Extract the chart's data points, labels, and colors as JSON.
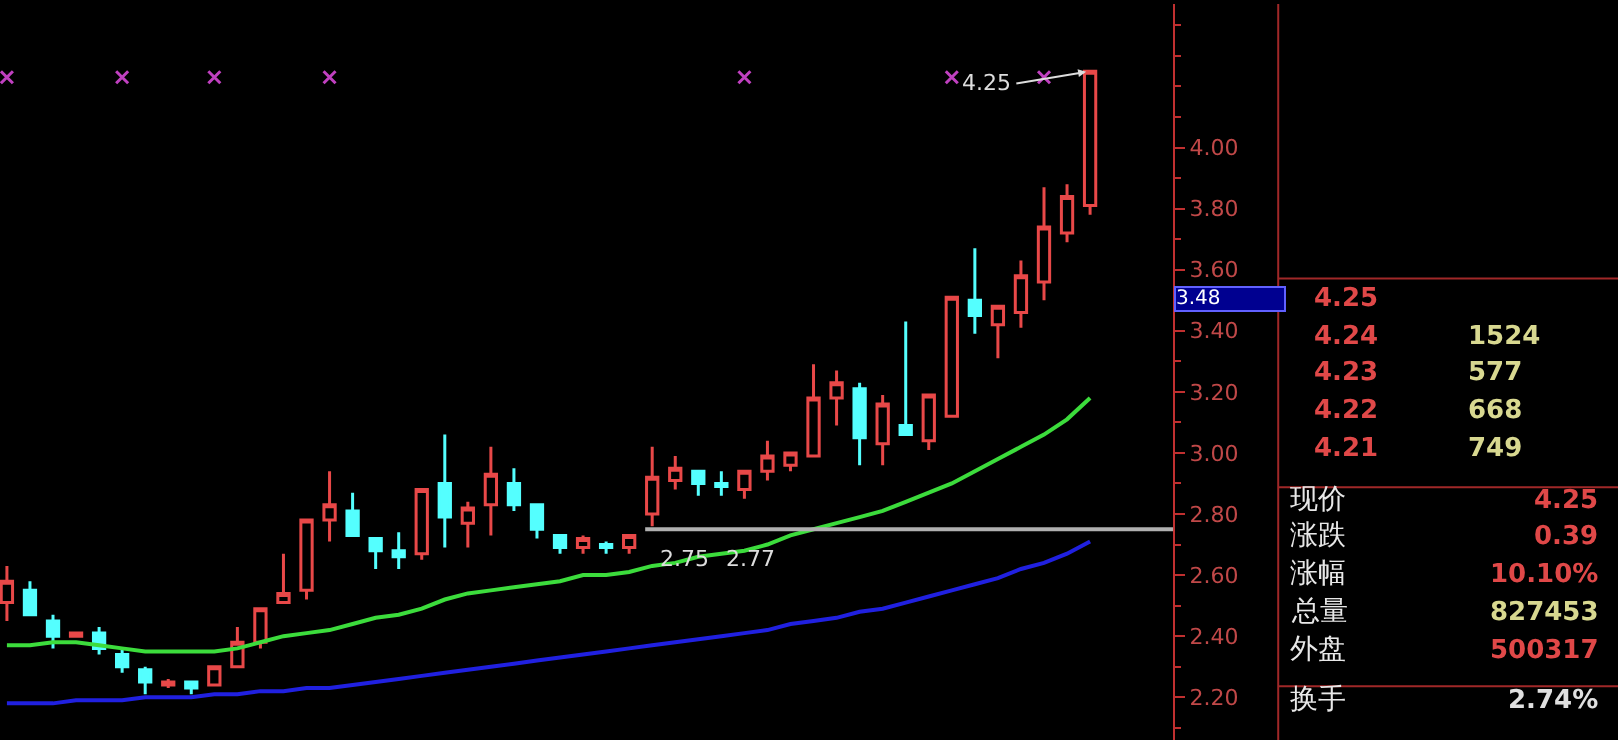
{
  "chart_data": {
    "type": "candlestick",
    "categories": [
      null,
      null,
      null,
      null,
      null,
      null,
      null,
      null,
      null,
      null,
      null,
      null,
      null,
      null,
      null,
      null,
      null,
      null,
      null,
      null,
      null,
      null,
      null,
      null,
      null,
      null,
      null,
      null,
      null,
      null,
      null,
      null,
      null,
      null,
      null,
      null,
      null,
      null,
      null,
      null,
      null,
      null,
      null,
      null,
      null,
      null,
      null,
      null
    ],
    "ohlc": [
      [
        2.51,
        2.63,
        2.45,
        2.58
      ],
      [
        2.55,
        2.58,
        2.47,
        2.47
      ],
      [
        2.45,
        2.47,
        2.36,
        2.4
      ],
      [
        2.4,
        2.41,
        2.4,
        2.41
      ],
      [
        2.41,
        2.43,
        2.34,
        2.36
      ],
      [
        2.34,
        2.36,
        2.28,
        2.3
      ],
      [
        2.29,
        2.3,
        2.21,
        2.25
      ],
      [
        2.24,
        2.26,
        2.23,
        2.25
      ],
      [
        2.25,
        2.25,
        2.21,
        2.23
      ],
      [
        2.24,
        2.3,
        2.24,
        2.3
      ],
      [
        2.3,
        2.43,
        2.3,
        2.38
      ],
      [
        2.38,
        2.49,
        2.36,
        2.49
      ],
      [
        2.51,
        2.67,
        2.51,
        2.54
      ],
      [
        2.55,
        2.78,
        2.52,
        2.78
      ],
      [
        2.78,
        2.94,
        2.71,
        2.83
      ],
      [
        2.81,
        2.87,
        2.73,
        2.73
      ],
      [
        2.72,
        2.72,
        2.62,
        2.68
      ],
      [
        2.68,
        2.74,
        2.62,
        2.66
      ],
      [
        2.67,
        2.88,
        2.65,
        2.88
      ],
      [
        2.9,
        3.06,
        2.69,
        2.79
      ],
      [
        2.77,
        2.84,
        2.69,
        2.82
      ],
      [
        2.83,
        3.02,
        2.73,
        2.93
      ],
      [
        2.9,
        2.95,
        2.81,
        2.83
      ],
      [
        2.83,
        2.83,
        2.72,
        2.75
      ],
      [
        2.73,
        2.73,
        2.67,
        2.69
      ],
      [
        2.69,
        2.73,
        2.67,
        2.72
      ],
      [
        2.7,
        2.71,
        2.67,
        2.69
      ],
      [
        2.69,
        2.73,
        2.67,
        2.73
      ],
      [
        2.8,
        3.02,
        2.76,
        2.92
      ],
      [
        2.91,
        2.99,
        2.88,
        2.95
      ],
      [
        2.94,
        2.94,
        2.86,
        2.9
      ],
      [
        2.9,
        2.94,
        2.86,
        2.89
      ],
      [
        2.88,
        2.94,
        2.85,
        2.94
      ],
      [
        2.94,
        3.04,
        2.91,
        2.99
      ],
      [
        2.96,
        3.0,
        2.94,
        3.0
      ],
      [
        2.99,
        3.29,
        2.99,
        3.18
      ],
      [
        3.18,
        3.27,
        3.09,
        3.23
      ],
      [
        3.21,
        3.23,
        2.96,
        3.05
      ],
      [
        3.03,
        3.19,
        2.96,
        3.16
      ],
      [
        3.09,
        3.43,
        3.06,
        3.06
      ],
      [
        3.04,
        3.19,
        3.01,
        3.19
      ],
      [
        3.12,
        3.51,
        3.12,
        3.51
      ],
      [
        3.5,
        3.67,
        3.39,
        3.45
      ],
      [
        3.42,
        3.48,
        3.31,
        3.48
      ],
      [
        3.46,
        3.63,
        3.41,
        3.58
      ],
      [
        3.56,
        3.87,
        3.5,
        3.74
      ],
      [
        3.72,
        3.88,
        3.69,
        3.84
      ],
      [
        3.81,
        4.25,
        3.78,
        4.25
      ]
    ],
    "series": [
      {
        "type": "line",
        "color": "#3cdc3c",
        "values": [
          2.37,
          2.37,
          2.38,
          2.38,
          2.37,
          2.36,
          2.35,
          2.35,
          2.35,
          2.35,
          2.36,
          2.38,
          2.4,
          2.41,
          2.42,
          2.44,
          2.46,
          2.47,
          2.49,
          2.52,
          2.54,
          2.55,
          2.56,
          2.57,
          2.58,
          2.6,
          2.6,
          2.61,
          2.63,
          2.64,
          2.66,
          2.67,
          2.68,
          2.7,
          2.73,
          2.75,
          2.77,
          2.79,
          2.81,
          2.84,
          2.87,
          2.9,
          2.94,
          2.98,
          3.02,
          3.06,
          3.11,
          3.18
        ]
      },
      {
        "type": "line",
        "color": "#2020e0",
        "values": [
          2.18,
          2.18,
          2.18,
          2.19,
          2.19,
          2.19,
          2.2,
          2.2,
          2.2,
          2.21,
          2.21,
          2.22,
          2.22,
          2.23,
          2.23,
          2.24,
          2.25,
          2.26,
          2.27,
          2.28,
          2.29,
          2.3,
          2.31,
          2.32,
          2.33,
          2.34,
          2.35,
          2.36,
          2.37,
          2.38,
          2.39,
          2.4,
          2.41,
          2.42,
          2.44,
          2.45,
          2.46,
          2.48,
          2.49,
          2.51,
          2.53,
          2.55,
          2.57,
          2.59,
          2.62,
          2.64,
          2.67,
          2.71
        ]
      },
      {
        "type": "scatter",
        "marker": "cross",
        "color": "#c040c0",
        "values": [
          4.23,
          null,
          null,
          null,
          null,
          4.23,
          null,
          null,
          null,
          4.23,
          null,
          null,
          null,
          null,
          4.23,
          null,
          null,
          null,
          null,
          null,
          null,
          null,
          null,
          null,
          null,
          null,
          null,
          null,
          null,
          null,
          null,
          null,
          4.23,
          null,
          null,
          null,
          null,
          null,
          null,
          null,
          null,
          4.23,
          null,
          null,
          null,
          4.23,
          null,
          null
        ]
      }
    ],
    "ylim": [
      2.06,
      4.47
    ],
    "yticks": [
      {
        "value": 2.2,
        "label": "2.20"
      },
      {
        "value": 2.4,
        "label": "2.40"
      },
      {
        "value": 2.6,
        "label": "2.60"
      },
      {
        "value": 2.8,
        "label": "2.80"
      },
      {
        "value": 3.0,
        "label": "3.00"
      },
      {
        "value": 3.2,
        "label": "3.20"
      },
      {
        "value": 3.4,
        "label": "3.40"
      },
      {
        "value": 3.6,
        "label": "3.60"
      },
      {
        "value": 3.8,
        "label": "3.80"
      },
      {
        "value": 4.0,
        "label": "4.00"
      }
    ],
    "ref_lines": [
      {
        "axis": "y",
        "value": 2.75,
        "color": "#b0b0b0"
      }
    ],
    "annotations": [
      {
        "text": "2.75",
        "y": 2.75
      },
      {
        "text": "2.77",
        "y": 2.75
      },
      "4.25",
      "3.48",
      "4.25",
      "4.24 1524",
      "4.23 577",
      "4.22 668",
      "4.21 749",
      "现价 4.25",
      "涨跌 0.39",
      "涨幅 10.10%",
      "总量 827453",
      "外盘 500317",
      "换手 2.74%"
    ],
    "grid": false,
    "tick_labels": "y"
  }
}
